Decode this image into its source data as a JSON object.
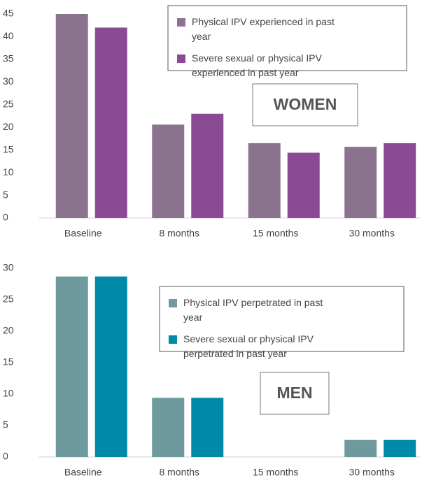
{
  "chart_data": [
    {
      "type": "bar",
      "annotation": "WOMEN",
      "categories": [
        "Baseline",
        "8 months",
        "15 months",
        "30 months"
      ],
      "series": [
        {
          "name": "Physical IPV experienced in past year",
          "color": "#8b7390",
          "values": [
            45,
            20.6,
            16.5,
            15.7
          ]
        },
        {
          "name": "Severe sexual or physical IPV experienced in past year",
          "color": "#8b4a94",
          "values": [
            42,
            23,
            14.4,
            16.5
          ]
        }
      ],
      "ylim": [
        0,
        45
      ],
      "yticks": [
        0,
        5,
        10,
        15,
        20,
        25,
        30,
        35,
        40,
        45
      ],
      "legend": "upper right"
    },
    {
      "type": "bar",
      "annotation": "MEN",
      "categories": [
        "Baseline",
        "8 months",
        "15 months",
        "30 months"
      ],
      "series": [
        {
          "name": "Physical IPV perpetrated in past year",
          "color": "#6e9a9e",
          "values": [
            28.7,
            9.4,
            0,
            2.7
          ]
        },
        {
          "name": "Severe sexual or physical IPV perpetrated in past year",
          "color": "#0089a8",
          "values": [
            28.7,
            9.4,
            0,
            2.7
          ]
        }
      ],
      "ylim": [
        0,
        30
      ],
      "yticks": [
        0,
        5,
        10,
        15,
        20,
        25,
        30
      ],
      "legend": "upper right"
    }
  ]
}
